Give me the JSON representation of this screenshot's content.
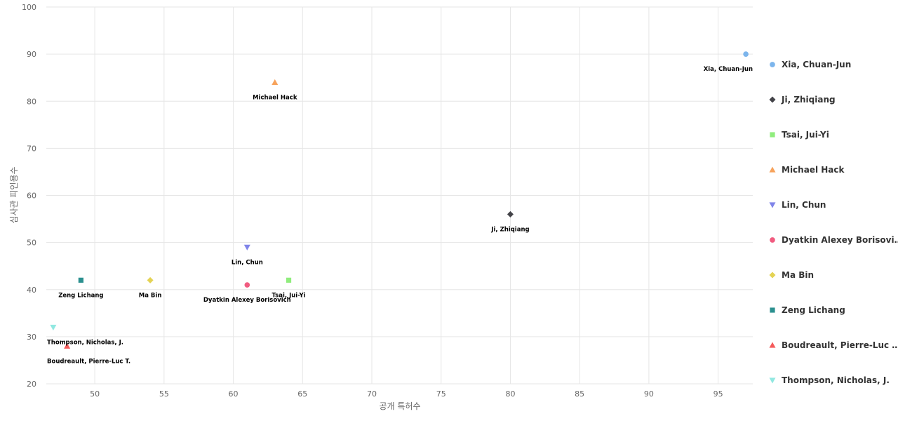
{
  "chart_data": {
    "type": "scatter",
    "title": "",
    "xlabel": "공개 특허수",
    "ylabel": "심사관 피인용수",
    "xlim": [
      46.5,
      97.5
    ],
    "ylim": [
      20,
      100
    ],
    "xticks": [
      50,
      55,
      60,
      65,
      70,
      75,
      80,
      85,
      90,
      95
    ],
    "yticks": [
      20,
      30,
      40,
      50,
      60,
      70,
      80,
      90,
      100
    ],
    "grid": true,
    "legend_position": "right",
    "series": [
      {
        "name": "Xia, Chuan-Jun",
        "label": "Xia, Chuan-Jun",
        "x": 97,
        "y": 90,
        "marker": "circle",
        "color": "#7cb5ec"
      },
      {
        "name": "Ji, Zhiqiang",
        "label": "Ji, Zhiqiang",
        "x": 80,
        "y": 56,
        "marker": "diamond",
        "color": "#434348"
      },
      {
        "name": "Tsai, Jui-Yi",
        "label": "Tsai, Jui-Yi",
        "x": 64,
        "y": 42,
        "marker": "square",
        "color": "#90ed7d"
      },
      {
        "name": "Michael Hack",
        "label": "Michael Hack",
        "x": 63,
        "y": 84,
        "marker": "triangle",
        "color": "#f7a35c"
      },
      {
        "name": "Lin, Chun",
        "label": "Lin, Chun",
        "x": 61,
        "y": 49,
        "marker": "triangle-down",
        "color": "#8085e9"
      },
      {
        "name": "Dyatkin Alexey Borisovi…",
        "label": "Dyatkin Alexey Borisovich",
        "x": 61,
        "y": 41,
        "marker": "circle",
        "color": "#f15c80"
      },
      {
        "name": "Ma Bin",
        "label": "Ma Bin",
        "x": 54,
        "y": 42,
        "marker": "diamond",
        "color": "#e4d354"
      },
      {
        "name": "Zeng Lichang",
        "label": "Zeng Lichang",
        "x": 49,
        "y": 42,
        "marker": "square",
        "color": "#2b908f"
      },
      {
        "name": "Boudreault, Pierre-Luc …",
        "label": "Boudreault, Pierre-Luc T.",
        "x": 48,
        "y": 28,
        "marker": "triangle",
        "color": "#f45b5b"
      },
      {
        "name": "Thompson, Nicholas, J.",
        "label": "Thompson, Nicholas, J.",
        "x": 47,
        "y": 32,
        "marker": "triangle-down",
        "color": "#91e8e1"
      }
    ]
  }
}
